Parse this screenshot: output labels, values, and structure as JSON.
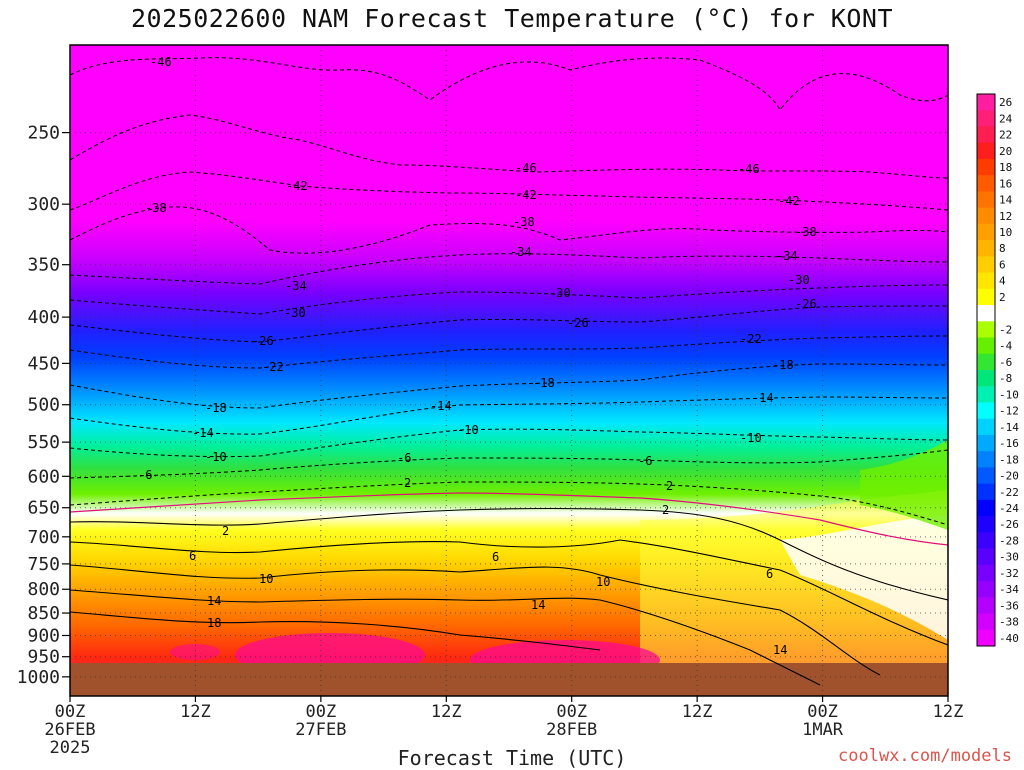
{
  "title": "2025022600 NAM Forecast Temperature (°C) for KONT",
  "x_axis_title": "Forecast Time (UTC)",
  "source_text": "coolwx.com/models",
  "y_ticks": [
    "250",
    "300",
    "350",
    "400",
    "450",
    "500",
    "550",
    "600",
    "650",
    "700",
    "750",
    "800",
    "850",
    "900",
    "950",
    "1000"
  ],
  "x_ticks": [
    {
      "line1": "00Z",
      "line2": "26FEB",
      "line3": "2025"
    },
    {
      "line1": "12Z",
      "line2": "",
      "line3": ""
    },
    {
      "line1": "00Z",
      "line2": "27FEB",
      "line3": ""
    },
    {
      "line1": "12Z",
      "line2": "",
      "line3": ""
    },
    {
      "line1": "00Z",
      "line2": "28FEB",
      "line3": ""
    },
    {
      "line1": "12Z",
      "line2": "",
      "line3": ""
    },
    {
      "line1": "00Z",
      "line2": "1MAR",
      "line3": ""
    },
    {
      "line1": "12Z",
      "line2": "",
      "line3": ""
    }
  ],
  "colorbar": [
    {
      "label": "26",
      "color": "#ff1ea0"
    },
    {
      "label": "24",
      "color": "#ff1e78"
    },
    {
      "label": "22",
      "color": "#ff1e50"
    },
    {
      "label": "20",
      "color": "#ff1e1e"
    },
    {
      "label": "18",
      "color": "#ff3c00"
    },
    {
      "label": "16",
      "color": "#ff5a00"
    },
    {
      "label": "14",
      "color": "#ff7300"
    },
    {
      "label": "12",
      "color": "#ff8c00"
    },
    {
      "label": "10",
      "color": "#ffa000"
    },
    {
      "label": "8",
      "color": "#ffb400"
    },
    {
      "label": "6",
      "color": "#ffcd00"
    },
    {
      "label": "4",
      "color": "#ffe600"
    },
    {
      "label": "2",
      "color": "#ffff00"
    },
    {
      "label": "",
      "color": "#ffffff"
    },
    {
      "label": "-2",
      "color": "#aaff00"
    },
    {
      "label": "-4",
      "color": "#64f000"
    },
    {
      "label": "-6",
      "color": "#32e632"
    },
    {
      "label": "-8",
      "color": "#00e678"
    },
    {
      "label": "-10",
      "color": "#00f0b4"
    },
    {
      "label": "-12",
      "color": "#00ffff"
    },
    {
      "label": "-14",
      "color": "#00d2ff"
    },
    {
      "label": "-16",
      "color": "#00aaff"
    },
    {
      "label": "-18",
      "color": "#0082ff"
    },
    {
      "label": "-20",
      "color": "#005aff"
    },
    {
      "label": "-22",
      "color": "#0032ff"
    },
    {
      "label": "-24",
      "color": "#0000ff"
    },
    {
      "label": "-26",
      "color": "#1e00ff"
    },
    {
      "label": "-28",
      "color": "#3c00ff"
    },
    {
      "label": "-30",
      "color": "#5a00ff"
    },
    {
      "label": "-32",
      "color": "#7800ff"
    },
    {
      "label": "-34",
      "color": "#9600ff"
    },
    {
      "label": "-36",
      "color": "#b400ff"
    },
    {
      "label": "-38",
      "color": "#d200ff"
    },
    {
      "label": "-40",
      "color": "#f000ff"
    }
  ],
  "contour_labels": {
    "minus46": "-46",
    "minus42": "-42",
    "minus38": "-38",
    "minus34": "-34",
    "minus30": "-30",
    "minus26": "-26",
    "minus22": "-22",
    "minus18": "-18",
    "minus14": "-14",
    "minus10": "-10",
    "minus6": "-6",
    "minus2": "-2",
    "plus2": "2",
    "plus6": "6",
    "plus10": "10",
    "plus14": "14",
    "plus18": "18"
  }
}
